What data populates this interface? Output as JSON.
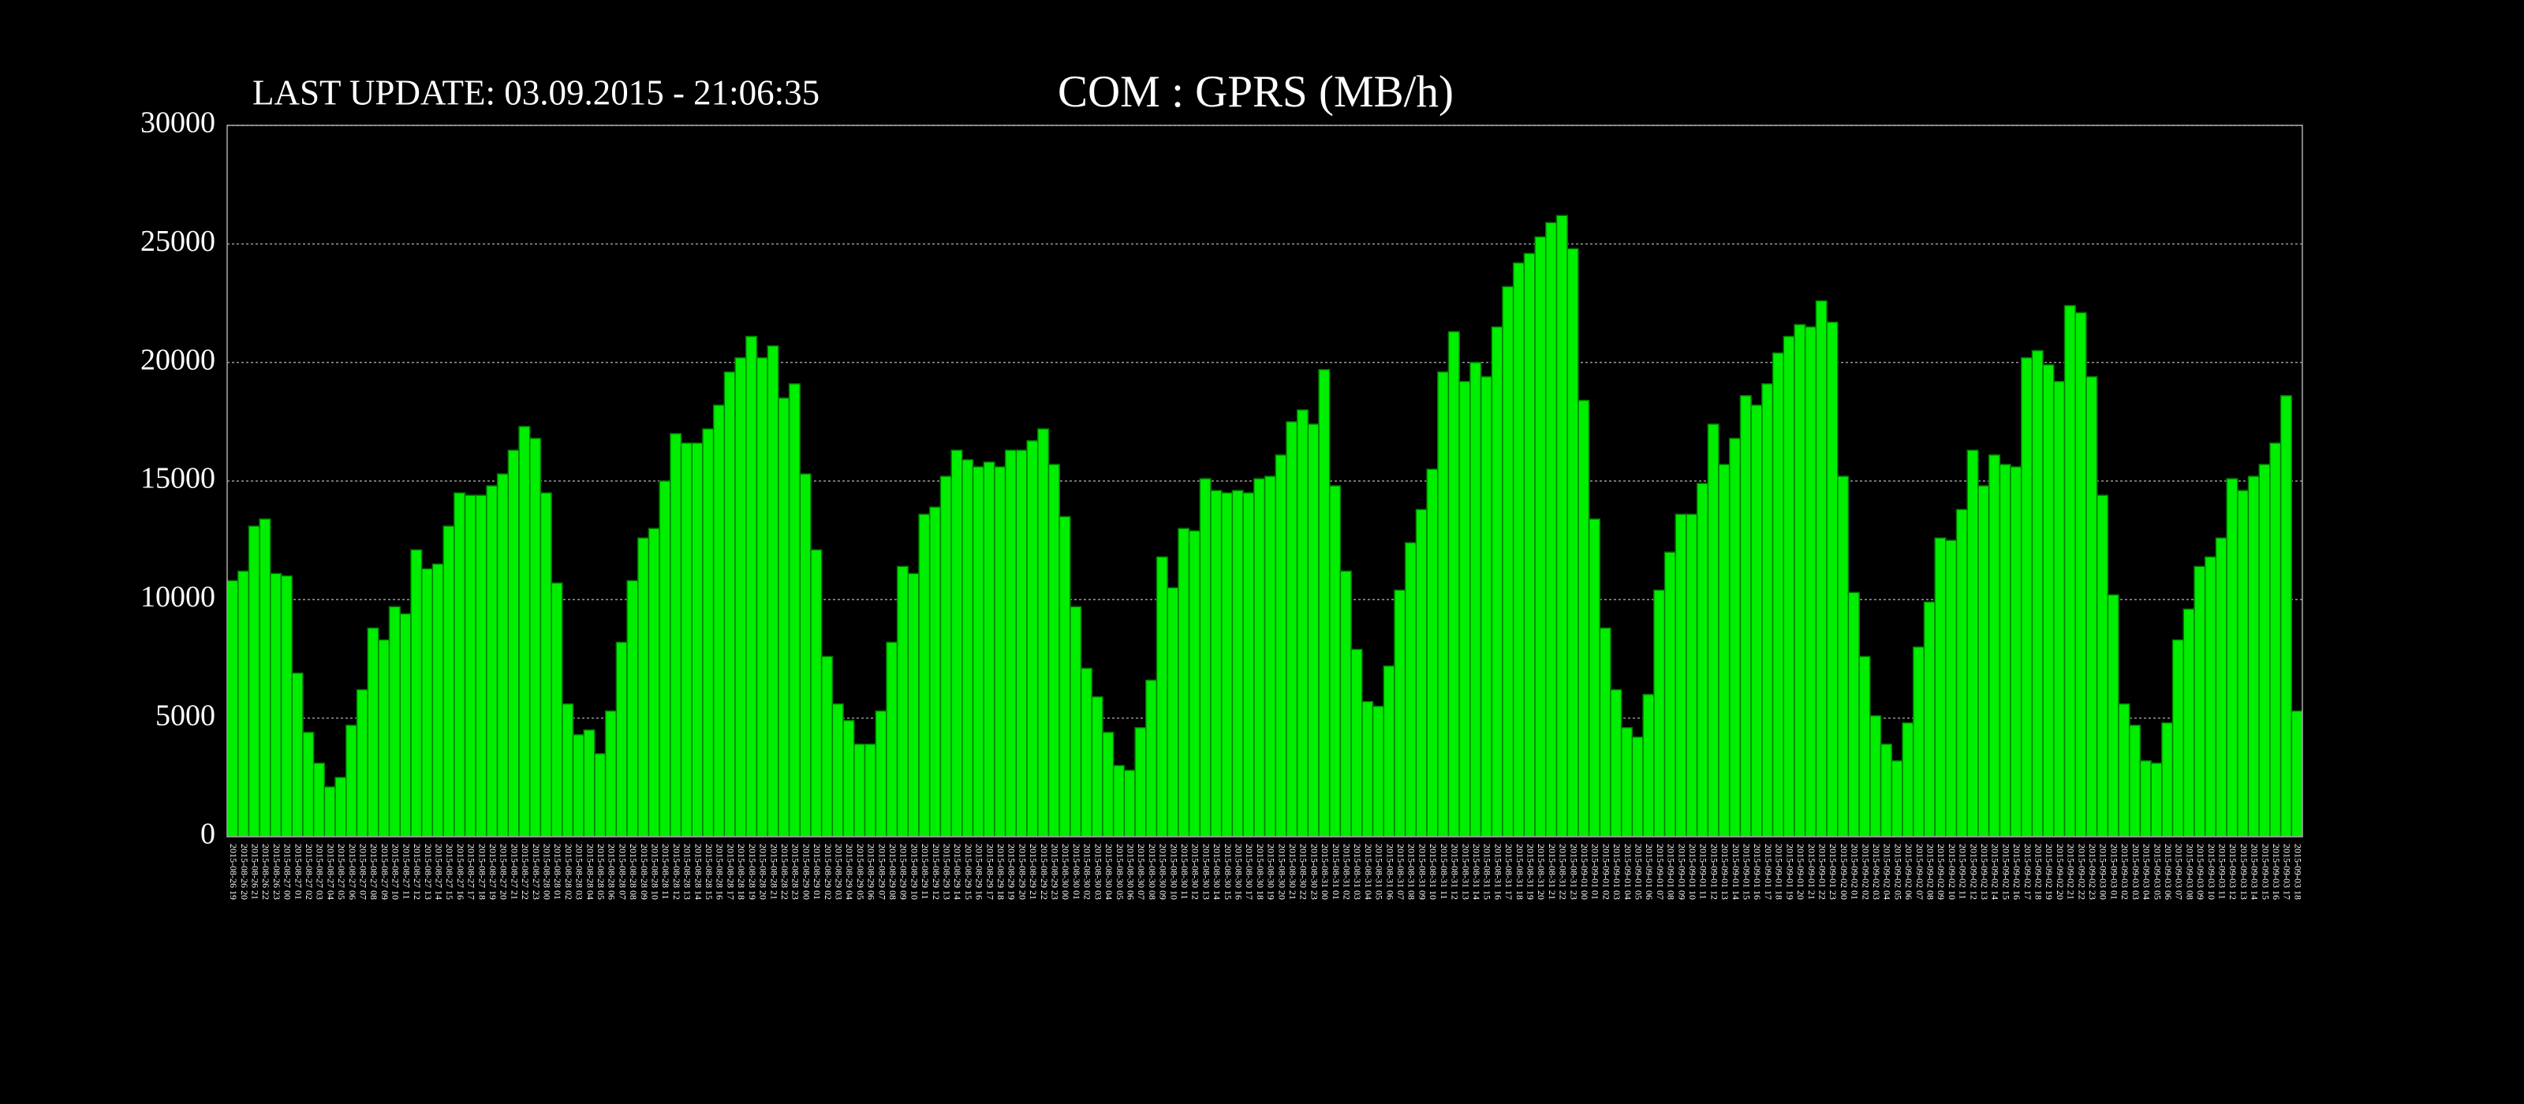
{
  "chart_data": {
    "type": "bar",
    "title": "COM : GPRS (MB/h)",
    "subtitle": "LAST UPDATE: 03.09.2015 - 21:06:35",
    "color": "#00ee00",
    "grid": true,
    "ylim": [
      0,
      30000
    ],
    "yticks": [
      0,
      5000,
      10000,
      15000,
      20000,
      25000,
      30000
    ],
    "categories": [
      "2015-08-26 19",
      "2015-08-26 20",
      "2015-08-26 21",
      "2015-08-26 22",
      "2015-08-26 23",
      "2015-08-27 00",
      "2015-08-27 01",
      "2015-08-27 02",
      "2015-08-27 03",
      "2015-08-27 04",
      "2015-08-27 05",
      "2015-08-27 06",
      "2015-08-27 07",
      "2015-08-27 08",
      "2015-08-27 09",
      "2015-08-27 10",
      "2015-08-27 11",
      "2015-08-27 12",
      "2015-08-27 13",
      "2015-08-27 14",
      "2015-08-27 15",
      "2015-08-27 16",
      "2015-08-27 17",
      "2015-08-27 18",
      "2015-08-27 19",
      "2015-08-27 20",
      "2015-08-27 21",
      "2015-08-27 22",
      "2015-08-27 23",
      "2015-08-28 00",
      "2015-08-28 01",
      "2015-08-28 02",
      "2015-08-28 03",
      "2015-08-28 04",
      "2015-08-28 05",
      "2015-08-28 06",
      "2015-08-28 07",
      "2015-08-28 08",
      "2015-08-28 09",
      "2015-08-28 10",
      "2015-08-28 11",
      "2015-08-28 12",
      "2015-08-28 13",
      "2015-08-28 14",
      "2015-08-28 15",
      "2015-08-28 16",
      "2015-08-28 17",
      "2015-08-28 18",
      "2015-08-28 19",
      "2015-08-28 20",
      "2015-08-28 21",
      "2015-08-28 22",
      "2015-08-28 23",
      "2015-08-29 00",
      "2015-08-29 01",
      "2015-08-29 02",
      "2015-08-29 03",
      "2015-08-29 04",
      "2015-08-29 05",
      "2015-08-29 06",
      "2015-08-29 07",
      "2015-08-29 08",
      "2015-08-29 09",
      "2015-08-29 10",
      "2015-08-29 11",
      "2015-08-29 12",
      "2015-08-29 13",
      "2015-08-29 14",
      "2015-08-29 15",
      "2015-08-29 16",
      "2015-08-29 17",
      "2015-08-29 18",
      "2015-08-29 19",
      "2015-08-29 20",
      "2015-08-29 21",
      "2015-08-29 22",
      "2015-08-29 23",
      "2015-08-30 00",
      "2015-08-30 01",
      "2015-08-30 02",
      "2015-08-30 03",
      "2015-08-30 04",
      "2015-08-30 05",
      "2015-08-30 06",
      "2015-08-30 07",
      "2015-08-30 08",
      "2015-08-30 09",
      "2015-08-30 10",
      "2015-08-30 11",
      "2015-08-30 12",
      "2015-08-30 13",
      "2015-08-30 14",
      "2015-08-30 15",
      "2015-08-30 16",
      "2015-08-30 17",
      "2015-08-30 18",
      "2015-08-30 19",
      "2015-08-30 20",
      "2015-08-30 21",
      "2015-08-30 22",
      "2015-08-30 23",
      "2015-08-31 00",
      "2015-08-31 01",
      "2015-08-31 02",
      "2015-08-31 03",
      "2015-08-31 04",
      "2015-08-31 05",
      "2015-08-31 06",
      "2015-08-31 07",
      "2015-08-31 08",
      "2015-08-31 09",
      "2015-08-31 10",
      "2015-08-31 11",
      "2015-08-31 12",
      "2015-08-31 13",
      "2015-08-31 14",
      "2015-08-31 15",
      "2015-08-31 16",
      "2015-08-31 17",
      "2015-08-31 18",
      "2015-08-31 19",
      "2015-08-31 20",
      "2015-08-31 21",
      "2015-08-31 22",
      "2015-08-31 23",
      "2015-09-01 00",
      "2015-09-01 01",
      "2015-09-01 02",
      "2015-09-01 03",
      "2015-09-01 04",
      "2015-09-01 05",
      "2015-09-01 06",
      "2015-09-01 07",
      "2015-09-01 08",
      "2015-09-01 09",
      "2015-09-01 10",
      "2015-09-01 11",
      "2015-09-01 12",
      "2015-09-01 13",
      "2015-09-01 14",
      "2015-09-01 15",
      "2015-09-01 16",
      "2015-09-01 17",
      "2015-09-01 18",
      "2015-09-01 19",
      "2015-09-01 20",
      "2015-09-01 21",
      "2015-09-01 22",
      "2015-09-01 23",
      "2015-09-02 00",
      "2015-09-02 01",
      "2015-09-02 02",
      "2015-09-02 03",
      "2015-09-02 04",
      "2015-09-02 05",
      "2015-09-02 06",
      "2015-09-02 07",
      "2015-09-02 08",
      "2015-09-02 09",
      "2015-09-02 10",
      "2015-09-02 11",
      "2015-09-02 12",
      "2015-09-02 13",
      "2015-09-02 14",
      "2015-09-02 15",
      "2015-09-02 16",
      "2015-09-02 17",
      "2015-09-02 18",
      "2015-09-02 19",
      "2015-09-02 20",
      "2015-09-02 21",
      "2015-09-02 22",
      "2015-09-02 23",
      "2015-09-03 00",
      "2015-09-03 01",
      "2015-09-03 02",
      "2015-09-03 03",
      "2015-09-03 04",
      "2015-09-03 05",
      "2015-09-03 06",
      "2015-09-03 07",
      "2015-09-03 08",
      "2015-09-03 09",
      "2015-09-03 10",
      "2015-09-03 11",
      "2015-09-03 12",
      "2015-09-03 13",
      "2015-09-03 14",
      "2015-09-03 15",
      "2015-09-03 16",
      "2015-09-03 17",
      "2015-09-03 18"
    ],
    "values": [
      10800,
      11200,
      13100,
      13400,
      11100,
      11000,
      6900,
      4400,
      3100,
      2100,
      2500,
      4700,
      6200,
      8800,
      8300,
      9700,
      9400,
      12100,
      11300,
      11500,
      13100,
      14500,
      14400,
      14400,
      14800,
      15300,
      16300,
      17300,
      16800,
      14500,
      10700,
      5600,
      4300,
      4500,
      3500,
      5300,
      8200,
      10800,
      12600,
      13000,
      15000,
      17000,
      16600,
      16600,
      17200,
      18200,
      19600,
      20200,
      21100,
      20200,
      20700,
      18500,
      19100,
      15300,
      12100,
      7600,
      5600,
      4900,
      3900,
      3900,
      5300,
      8200,
      11400,
      11100,
      13600,
      13900,
      15200,
      16300,
      15900,
      15600,
      15800,
      15600,
      16300,
      16300,
      16700,
      17200,
      15700,
      13500,
      9700,
      7100,
      5900,
      4400,
      3000,
      2800,
      4600,
      6600,
      11800,
      10500,
      13000,
      12900,
      15100,
      14600,
      14500,
      14600,
      14500,
      15100,
      15200,
      16100,
      17500,
      18000,
      17400,
      19700,
      14800,
      11200,
      7900,
      5700,
      5500,
      7200,
      10400,
      12400,
      13800,
      15500,
      19600,
      21300,
      19200,
      20000,
      19400,
      21500,
      23200,
      24200,
      24600,
      25300,
      25900,
      26200,
      24800,
      18400,
      13400,
      8800,
      6200,
      4600,
      4200,
      6000,
      10400,
      12000,
      13600,
      13600,
      14900,
      17400,
      15700,
      16800,
      18600,
      18200,
      19100,
      20400,
      21100,
      21600,
      21500,
      22600,
      21700,
      15200,
      10300,
      7600,
      5100,
      3900,
      3200,
      4800,
      8000,
      9900,
      12600,
      12500,
      13800,
      16300,
      14800,
      16100,
      15700,
      15600,
      20200,
      20500,
      19900,
      19200,
      22400,
      22100,
      19400,
      14400,
      10200,
      5600,
      4700,
      3200,
      3100,
      4800,
      8300,
      9600,
      11400,
      11800,
      12600,
      15100,
      14600,
      15200,
      15700,
      16600,
      18600,
      5300
    ]
  }
}
